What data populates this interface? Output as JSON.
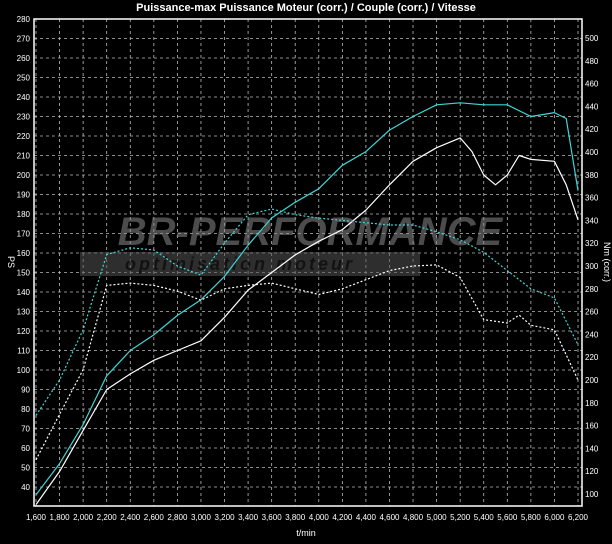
{
  "chart_data": {
    "type": "line",
    "title": "Puissance-max Puissance Moteur (corr.) / Couple (corr.) / Vitesse",
    "xlabel": "t/min",
    "ylabel_left": "PS",
    "ylabel_right": "Nm (corr.)",
    "xlim": [
      1600,
      6200
    ],
    "ylim_left": [
      30,
      280
    ],
    "ylim_right": [
      90,
      517
    ],
    "x_ticks": [
      "1,600",
      "1,800",
      "2,000",
      "2,200",
      "2,400",
      "2,600",
      "2,800",
      "3,000",
      "3,200",
      "3,400",
      "3,600",
      "3,800",
      "4,000",
      "4,200",
      "4,400",
      "4,600",
      "4,800",
      "5,000",
      "5,200",
      "5,400",
      "5,600",
      "5,800",
      "6,000",
      "6,200"
    ],
    "y_ticks_left": [
      40,
      50,
      60,
      70,
      80,
      90,
      100,
      110,
      120,
      130,
      140,
      150,
      160,
      170,
      180,
      190,
      200,
      210,
      220,
      230,
      240,
      250,
      260,
      270,
      280
    ],
    "y_ticks_right": [
      100,
      120,
      140,
      160,
      180,
      200,
      220,
      240,
      260,
      280,
      300,
      320,
      340,
      360,
      380,
      400,
      420,
      440,
      460,
      480,
      500
    ],
    "grid": true,
    "colors": {
      "background": "#000000",
      "cyan": "#3fd6d6",
      "white": "#ffffff",
      "grid": "#bbbbbb"
    },
    "series": [
      {
        "axis": "left",
        "style": "solid",
        "color": "#3fd6d6",
        "x": [
          1600,
          1800,
          2000,
          2200,
          2400,
          2600,
          2800,
          3000,
          3200,
          3400,
          3600,
          3800,
          4000,
          4200,
          4400,
          4600,
          4800,
          5000,
          5200,
          5400,
          5600,
          5800,
          6000,
          6100,
          6200
        ],
        "y": [
          36,
          52,
          72,
          97,
          110,
          118,
          128,
          136,
          148,
          164,
          178,
          186,
          193,
          205,
          212,
          223,
          230,
          236,
          237,
          236,
          236,
          230,
          232,
          229,
          192
        ]
      },
      {
        "axis": "left",
        "style": "solid",
        "color": "#ffffff",
        "x": [
          1600,
          1800,
          2000,
          2200,
          2400,
          2600,
          2800,
          3000,
          3200,
          3400,
          3600,
          3800,
          4000,
          4200,
          4400,
          4600,
          4800,
          5000,
          5200,
          5300,
          5400,
          5500,
          5600,
          5700,
          5800,
          6000,
          6100,
          6200
        ],
        "y": [
          31,
          48,
          69,
          90,
          98,
          105,
          110,
          115,
          127,
          141,
          150,
          159,
          166,
          172,
          182,
          195,
          207,
          214,
          219,
          212,
          200,
          195,
          200,
          210,
          208,
          207,
          195,
          177
        ]
      },
      {
        "axis": "right",
        "style": "dashed",
        "color": "#3fd6d6",
        "x": [
          1600,
          1800,
          2000,
          2200,
          2400,
          2600,
          2800,
          3000,
          3200,
          3400,
          3600,
          3800,
          4000,
          4200,
          4400,
          4600,
          4800,
          5000,
          5200,
          5400,
          5600,
          5800,
          6000,
          6200
        ],
        "y": [
          169,
          200,
          244,
          310,
          316,
          314,
          300,
          292,
          320,
          345,
          350,
          345,
          342,
          340,
          338,
          336,
          336,
          330,
          323,
          312,
          296,
          280,
          272,
          231
        ]
      },
      {
        "axis": "right",
        "style": "dashed",
        "color": "#ffffff",
        "x": [
          1600,
          1800,
          2000,
          2200,
          2400,
          2600,
          2800,
          3000,
          3200,
          3400,
          3600,
          3800,
          4000,
          4200,
          4400,
          4600,
          4800,
          5000,
          5200,
          5400,
          5600,
          5700,
          5800,
          6000,
          6200
        ],
        "y": [
          130,
          170,
          209,
          283,
          285,
          283,
          278,
          270,
          280,
          283,
          285,
          280,
          275,
          280,
          288,
          296,
          300,
          301,
          290,
          253,
          250,
          257,
          248,
          244,
          200
        ]
      }
    ]
  },
  "watermark": {
    "logo": "BR-Performance",
    "tagline": "optimisation moteur"
  }
}
